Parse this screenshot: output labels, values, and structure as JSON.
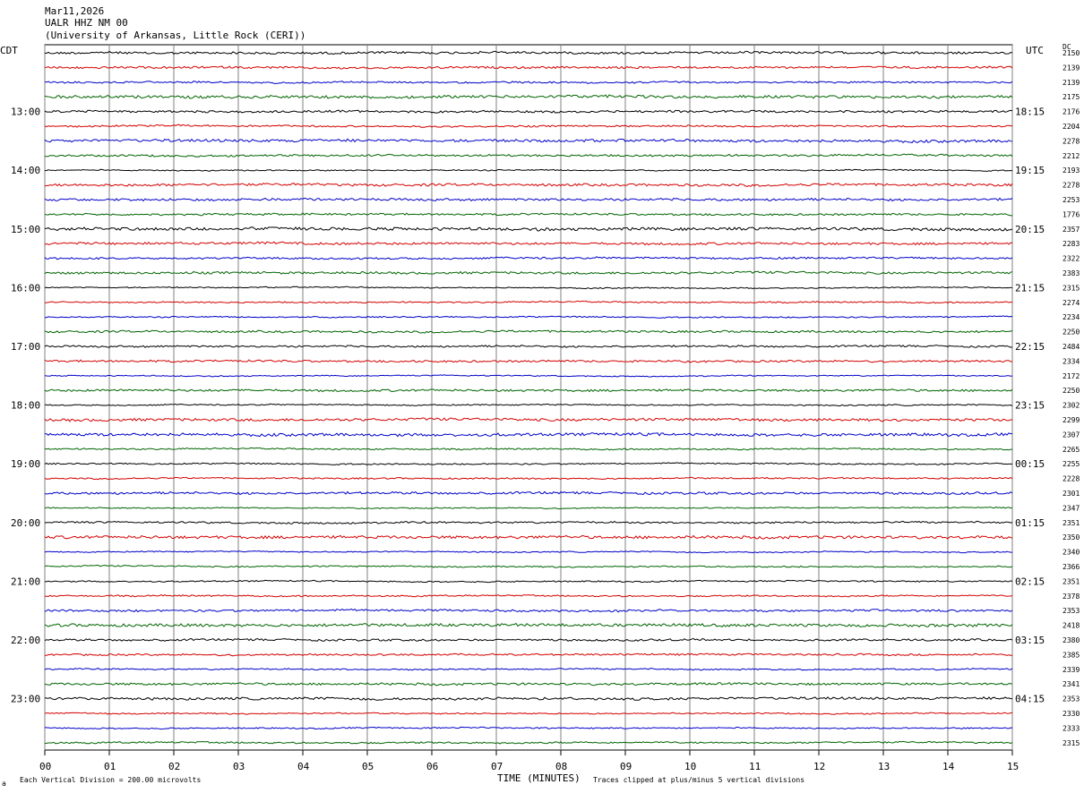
{
  "header": {
    "date": "Mar11,2026",
    "station": "UALR HHZ NM 00",
    "institution": "(University of Arkansas, Little Rock (CERI))"
  },
  "chart_data": {
    "type": "line",
    "title": "UALR HHZ NM 00",
    "xlabel": "TIME (MINUTES)",
    "x_ticks": [
      "00",
      "01",
      "02",
      "03",
      "04",
      "05",
      "06",
      "07",
      "08",
      "09",
      "10",
      "11",
      "12",
      "13",
      "14",
      "15"
    ],
    "xlim": [
      0,
      15
    ],
    "left_axis_label": "CDT",
    "right_axis_label": "UTC",
    "dc_label": "DC",
    "cdt_ticks": [
      "13:00",
      "14:00",
      "15:00",
      "16:00",
      "17:00",
      "18:00",
      "19:00",
      "20:00",
      "21:00",
      "22:00",
      "23:00"
    ],
    "utc_ticks": [
      "18:15",
      "19:15",
      "20:15",
      "21:15",
      "22:15",
      "23:15",
      "00:15",
      "01:15",
      "02:15",
      "03:15",
      "04:15"
    ],
    "trace_colors": [
      "#000000",
      "#d40000",
      "#0000c8",
      "#006400"
    ],
    "dc_offsets": [
      2150,
      2139,
      2139,
      2175,
      2176,
      2204,
      2278,
      2212,
      2193,
      2278,
      2253,
      1776,
      2357,
      2283,
      2322,
      2383,
      2315,
      2274,
      2234,
      2250,
      2484,
      2334,
      2172,
      2250,
      2302,
      2299,
      2307,
      2265,
      2255,
      2228,
      2301,
      2347,
      2351,
      2350,
      2340,
      2366,
      2351,
      2378,
      2353,
      2418,
      2380,
      2385,
      2339,
      2341,
      2353,
      2330,
      2333,
      2315
    ],
    "scale_note": "Each Vertical Division =  200.00 microvolts",
    "clip_note": "Traces clipped at plus/minus 5 vertical divisions",
    "corner_mark": "a"
  }
}
